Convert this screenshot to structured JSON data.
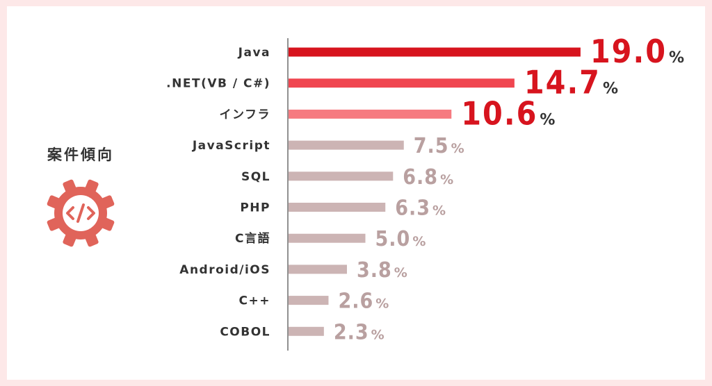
{
  "side": {
    "title": "案件傾向",
    "icon": "code-gear-icon",
    "icon_color": "#e0645a"
  },
  "chart_data": {
    "type": "bar",
    "orientation": "horizontal",
    "title": "案件傾向",
    "unit": "%",
    "categories": [
      "Java",
      ".NET(VB / C#)",
      "インフラ",
      "JavaScript",
      "SQL",
      "PHP",
      "C言語",
      "Android/iOS",
      "C++",
      "COBOL"
    ],
    "values": [
      19.0,
      14.7,
      10.6,
      7.5,
      6.8,
      6.3,
      5.0,
      3.8,
      2.6,
      2.3
    ],
    "labels": [
      "19.0",
      "14.7",
      "10.6",
      "7.5",
      "6.8",
      "6.3",
      "5.0",
      "3.8",
      "2.6",
      "2.3"
    ],
    "bar_colors": [
      "#d7141e",
      "#f04650",
      "#f67a80",
      "#ccb4b4",
      "#ccb4b4",
      "#ccb4b4",
      "#ccb4b4",
      "#ccb4b4",
      "#ccb4b4",
      "#ccb4b4"
    ],
    "label_colors": [
      "#d7141e",
      "#d7141e",
      "#d7141e",
      "#b9a0a0",
      "#b9a0a0",
      "#b9a0a0",
      "#b9a0a0",
      "#b9a0a0",
      "#b9a0a0",
      "#b9a0a0"
    ],
    "highlight_top": 3,
    "grid": false,
    "legend": "none"
  }
}
